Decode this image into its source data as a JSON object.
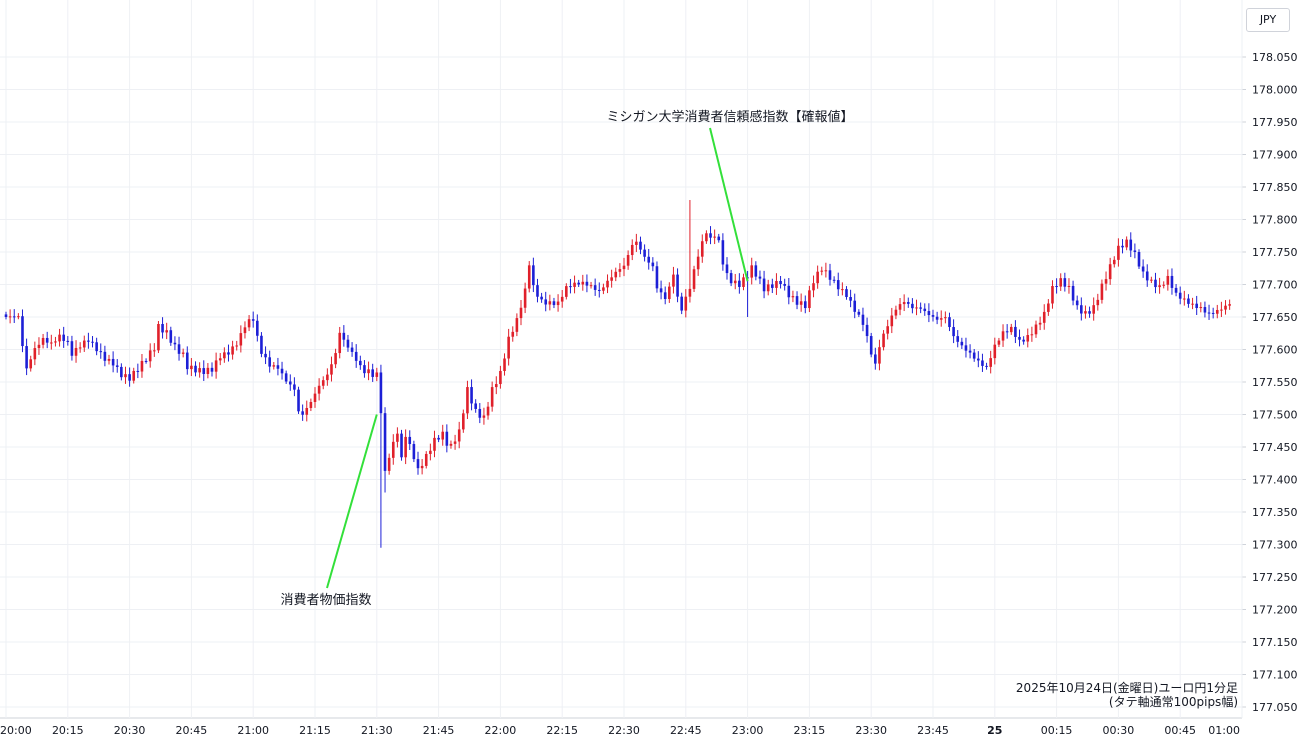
{
  "currency_badge": "JPY",
  "caption": {
    "line1": "2025年10月24日(金曜日)ユーロ円1分足",
    "line2": "(タテ軸通常100pips幅)"
  },
  "colors": {
    "up": "#e0202a",
    "down": "#1c1fd6",
    "grid": "#eef0f4",
    "annotation_line": "#33e03a",
    "axis_text": "#131722"
  },
  "chart_data": {
    "type": "candlestick",
    "title": "",
    "currency": "JPY",
    "ylim": [
      177.05,
      178.1
    ],
    "y_ticks": [
      "178.050",
      "178.000",
      "177.950",
      "177.900",
      "177.850",
      "177.800",
      "177.750",
      "177.700",
      "177.650",
      "177.600",
      "177.550",
      "177.500",
      "177.450",
      "177.400",
      "177.350",
      "177.300",
      "177.250",
      "177.200",
      "177.150",
      "177.100",
      "177.050"
    ],
    "x_ticks": [
      {
        "label": "20:00",
        "minute": 0
      },
      {
        "label": "20:15",
        "minute": 15
      },
      {
        "label": "20:30",
        "minute": 30
      },
      {
        "label": "20:45",
        "minute": 45
      },
      {
        "label": "21:00",
        "minute": 60
      },
      {
        "label": "21:15",
        "minute": 75
      },
      {
        "label": "21:30",
        "minute": 90
      },
      {
        "label": "21:45",
        "minute": 105
      },
      {
        "label": "22:00",
        "minute": 120
      },
      {
        "label": "22:15",
        "minute": 135
      },
      {
        "label": "22:30",
        "minute": 150
      },
      {
        "label": "22:45",
        "minute": 165
      },
      {
        "label": "23:00",
        "minute": 180
      },
      {
        "label": "23:15",
        "minute": 195
      },
      {
        "label": "23:30",
        "minute": 210
      },
      {
        "label": "23:45",
        "minute": 225
      },
      {
        "label": "25",
        "minute": 240
      },
      {
        "label": "00:15",
        "minute": 255
      },
      {
        "label": "00:30",
        "minute": 270
      },
      {
        "label": "00:45",
        "minute": 285
      },
      {
        "label": "01:00",
        "minute": 300
      }
    ],
    "close_path": [
      [
        0,
        177.65
      ],
      [
        3,
        177.645
      ],
      [
        4,
        177.6
      ],
      [
        5,
        177.565
      ],
      [
        7,
        177.6
      ],
      [
        9,
        177.62
      ],
      [
        11,
        177.615
      ],
      [
        13,
        177.625
      ],
      [
        15,
        177.61
      ],
      [
        16,
        177.59
      ],
      [
        18,
        177.6
      ],
      [
        20,
        177.61
      ],
      [
        22,
        177.6
      ],
      [
        24,
        177.59
      ],
      [
        26,
        177.585
      ],
      [
        28,
        177.565
      ],
      [
        30,
        177.555
      ],
      [
        32,
        177.565
      ],
      [
        34,
        177.58
      ],
      [
        36,
        177.6
      ],
      [
        37,
        177.635
      ],
      [
        39,
        177.63
      ],
      [
        41,
        177.61
      ],
      [
        43,
        177.595
      ],
      [
        44,
        177.575
      ],
      [
        46,
        177.565
      ],
      [
        48,
        177.56
      ],
      [
        50,
        177.565
      ],
      [
        52,
        177.59
      ],
      [
        54,
        177.6
      ],
      [
        56,
        177.615
      ],
      [
        58,
        177.64
      ],
      [
        59,
        177.645
      ],
      [
        60,
        177.645
      ],
      [
        61,
        177.615
      ],
      [
        62,
        177.59
      ],
      [
        64,
        177.57
      ],
      [
        66,
        177.57
      ],
      [
        68,
        177.555
      ],
      [
        70,
        177.545
      ],
      [
        71,
        177.51
      ],
      [
        72,
        177.505
      ],
      [
        74,
        177.52
      ],
      [
        76,
        177.54
      ],
      [
        78,
        177.555
      ],
      [
        80,
        177.59
      ],
      [
        81,
        177.625
      ],
      [
        82,
        177.615
      ],
      [
        84,
        177.6
      ],
      [
        86,
        177.58
      ],
      [
        87,
        177.57
      ],
      [
        88,
        177.57
      ],
      [
        89,
        177.56
      ],
      [
        90,
        177.56
      ],
      [
        91,
        177.5
      ],
      [
        92,
        177.405
      ],
      [
        93,
        177.43
      ],
      [
        95,
        177.47
      ],
      [
        96,
        177.43
      ],
      [
        97,
        177.47
      ],
      [
        99,
        177.44
      ],
      [
        100,
        177.42
      ],
      [
        102,
        177.44
      ],
      [
        104,
        177.46
      ],
      [
        106,
        177.465
      ],
      [
        107,
        177.45
      ],
      [
        108,
        177.445
      ],
      [
        110,
        177.47
      ],
      [
        112,
        177.54
      ],
      [
        114,
        177.51
      ],
      [
        116,
        177.5
      ],
      [
        118,
        177.54
      ],
      [
        120,
        177.56
      ],
      [
        122,
        177.61
      ],
      [
        124,
        177.64
      ],
      [
        126,
        177.69
      ],
      [
        127,
        177.735
      ],
      [
        128,
        177.7
      ],
      [
        130,
        177.68
      ],
      [
        132,
        177.675
      ],
      [
        134,
        177.67
      ],
      [
        136,
        177.69
      ],
      [
        138,
        177.695
      ],
      [
        140,
        177.7
      ],
      [
        142,
        177.7
      ],
      [
        144,
        177.695
      ],
      [
        146,
        177.71
      ],
      [
        148,
        177.72
      ],
      [
        150,
        177.725
      ],
      [
        152,
        177.755
      ],
      [
        153,
        177.76
      ],
      [
        155,
        177.74
      ],
      [
        157,
        177.73
      ],
      [
        158,
        177.7
      ],
      [
        160,
        177.685
      ],
      [
        161,
        177.7
      ],
      [
        162,
        177.72
      ],
      [
        163,
        177.68
      ],
      [
        164,
        177.66
      ],
      [
        166,
        177.69
      ],
      [
        168,
        177.74
      ],
      [
        170,
        177.78
      ],
      [
        171,
        177.77
      ],
      [
        172,
        177.78
      ],
      [
        173,
        177.77
      ],
      [
        174,
        177.74
      ],
      [
        175,
        177.72
      ],
      [
        176,
        177.71
      ],
      [
        178,
        177.7
      ],
      [
        180,
        177.71
      ],
      [
        181,
        177.72
      ],
      [
        182,
        177.71
      ],
      [
        184,
        177.69
      ],
      [
        186,
        177.7
      ],
      [
        188,
        177.71
      ],
      [
        190,
        177.69
      ],
      [
        192,
        177.675
      ],
      [
        194,
        177.665
      ],
      [
        196,
        177.7
      ],
      [
        198,
        177.72
      ],
      [
        200,
        177.71
      ],
      [
        202,
        177.7
      ],
      [
        204,
        177.69
      ],
      [
        206,
        177.665
      ],
      [
        208,
        177.64
      ],
      [
        210,
        177.59
      ],
      [
        211,
        177.57
      ],
      [
        212,
        177.6
      ],
      [
        214,
        177.635
      ],
      [
        216,
        177.665
      ],
      [
        218,
        177.68
      ],
      [
        220,
        177.67
      ],
      [
        222,
        177.665
      ],
      [
        224,
        177.65
      ],
      [
        226,
        177.64
      ],
      [
        228,
        177.645
      ],
      [
        230,
        177.62
      ],
      [
        232,
        177.61
      ],
      [
        234,
        177.6
      ],
      [
        236,
        177.585
      ],
      [
        238,
        177.57
      ],
      [
        240,
        177.6
      ],
      [
        242,
        177.62
      ],
      [
        244,
        177.63
      ],
      [
        246,
        177.615
      ],
      [
        248,
        177.625
      ],
      [
        250,
        177.64
      ],
      [
        252,
        177.655
      ],
      [
        254,
        177.69
      ],
      [
        256,
        177.7
      ],
      [
        258,
        177.69
      ],
      [
        260,
        177.665
      ],
      [
        262,
        177.66
      ],
      [
        264,
        177.67
      ],
      [
        266,
        177.7
      ],
      [
        268,
        177.725
      ],
      [
        270,
        177.75
      ],
      [
        272,
        177.76
      ],
      [
        274,
        177.745
      ],
      [
        276,
        177.72
      ],
      [
        278,
        177.71
      ],
      [
        280,
        177.7
      ],
      [
        282,
        177.71
      ],
      [
        284,
        177.68
      ],
      [
        286,
        177.67
      ],
      [
        288,
        177.665
      ],
      [
        290,
        177.665
      ],
      [
        292,
        177.66
      ],
      [
        294,
        177.665
      ],
      [
        297,
        177.67
      ]
    ],
    "spikes": [
      {
        "minute": 91,
        "low": 177.295
      },
      {
        "minute": 92,
        "low": 177.38
      },
      {
        "minute": 166,
        "high": 177.83
      },
      {
        "minute": 180,
        "low": 177.65
      }
    ],
    "annotations": [
      {
        "text": "消費者物価指数",
        "minute": 90,
        "price": 177.5
      },
      {
        "text": "ミシガン大学消費者信頼感指数【確報値】",
        "minute": 180,
        "price": 177.705
      }
    ]
  }
}
